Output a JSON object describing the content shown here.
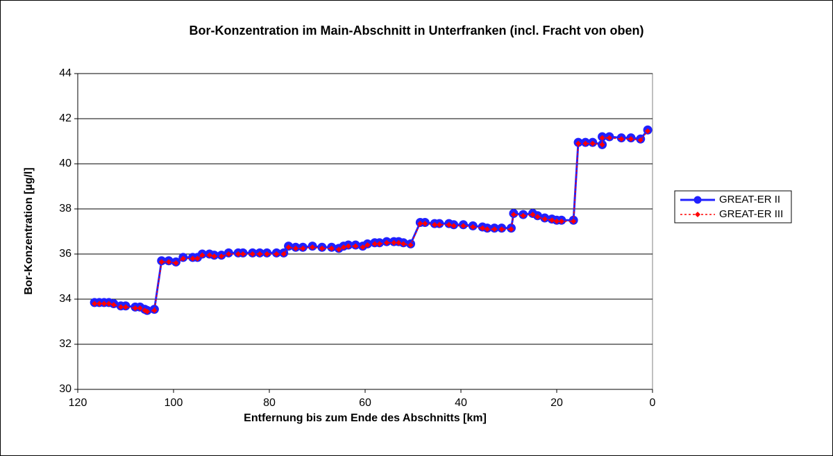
{
  "chart_data": {
    "type": "line",
    "title": "Bor-Konzentration im Main-Abschnitt in Unterfranken (incl. Fracht von oben)",
    "xlabel": "Entfernung bis zum Ende des Abschnitts [km]",
    "ylabel": "Bor-Konzentration [µg/l]",
    "x": [
      116.5,
      115.5,
      114.5,
      113.5,
      112.5,
      111,
      110,
      108,
      107,
      106,
      105.5,
      104,
      102.5,
      101,
      99.5,
      98,
      96,
      95,
      94,
      92.5,
      91.5,
      90,
      88.5,
      86.5,
      85.5,
      83.5,
      82,
      80.5,
      78.5,
      77,
      76,
      74.5,
      73,
      71,
      69,
      67,
      65.5,
      64.5,
      63.5,
      62,
      60.5,
      59.5,
      58,
      57,
      55.5,
      54,
      53,
      52,
      50.5,
      48.5,
      47.5,
      45.5,
      44.5,
      42.5,
      41.5,
      39.5,
      37.5,
      35.5,
      34.5,
      33,
      31.5,
      29.5,
      29,
      27,
      25,
      24,
      22.5,
      21,
      20,
      19,
      16.5,
      15.5,
      14,
      12.5,
      10.5,
      10.5,
      9,
      6.5,
      4.5,
      2.5,
      1
    ],
    "series": [
      {
        "name": "GREAT-ER II",
        "color": "#2020ff",
        "values": [
          33.85,
          33.85,
          33.85,
          33.85,
          33.8,
          33.7,
          33.7,
          33.65,
          33.65,
          33.55,
          33.5,
          33.55,
          35.7,
          35.7,
          35.65,
          35.85,
          35.85,
          35.85,
          36.0,
          36.0,
          35.95,
          35.95,
          36.05,
          36.05,
          36.05,
          36.05,
          36.05,
          36.05,
          36.05,
          36.05,
          36.35,
          36.3,
          36.3,
          36.35,
          36.3,
          36.3,
          36.25,
          36.35,
          36.4,
          36.4,
          36.35,
          36.45,
          36.5,
          36.5,
          36.55,
          36.55,
          36.55,
          36.5,
          36.45,
          37.4,
          37.4,
          37.35,
          37.35,
          37.35,
          37.3,
          37.3,
          37.25,
          37.2,
          37.15,
          37.15,
          37.15,
          37.15,
          37.8,
          37.75,
          37.8,
          37.7,
          37.6,
          37.55,
          37.5,
          37.5,
          37.5,
          40.95,
          40.95,
          40.95,
          40.85,
          41.2,
          41.2,
          41.15,
          41.15,
          41.1,
          41.5
        ]
      },
      {
        "name": "GREAT-ER III",
        "color": "#ff0000",
        "values": [
          33.8,
          33.8,
          33.8,
          33.8,
          33.75,
          33.65,
          33.65,
          33.6,
          33.6,
          33.5,
          33.45,
          33.5,
          35.65,
          35.65,
          35.6,
          35.8,
          35.8,
          35.8,
          35.95,
          35.95,
          35.9,
          35.9,
          36.0,
          36.0,
          36.0,
          36.0,
          36.0,
          36.0,
          36.0,
          36.0,
          36.3,
          36.25,
          36.25,
          36.3,
          36.25,
          36.25,
          36.2,
          36.3,
          36.35,
          36.35,
          36.3,
          36.4,
          36.45,
          36.45,
          36.5,
          36.5,
          36.5,
          36.45,
          36.4,
          37.35,
          37.35,
          37.3,
          37.3,
          37.3,
          37.25,
          37.25,
          37.2,
          37.15,
          37.1,
          37.1,
          37.1,
          37.1,
          37.75,
          37.7,
          37.75,
          37.65,
          37.55,
          37.5,
          37.45,
          37.45,
          37.45,
          40.9,
          40.9,
          40.9,
          40.85,
          41.15,
          41.15,
          41.1,
          41.1,
          41.05,
          41.45
        ]
      }
    ],
    "xlim": [
      120,
      0
    ],
    "xticks": [
      120,
      100,
      80,
      60,
      40,
      20,
      0
    ],
    "ylim": [
      30,
      44
    ],
    "yticks": [
      30,
      32,
      34,
      36,
      38,
      40,
      42,
      44
    ],
    "grid": true,
    "legend": "right"
  }
}
